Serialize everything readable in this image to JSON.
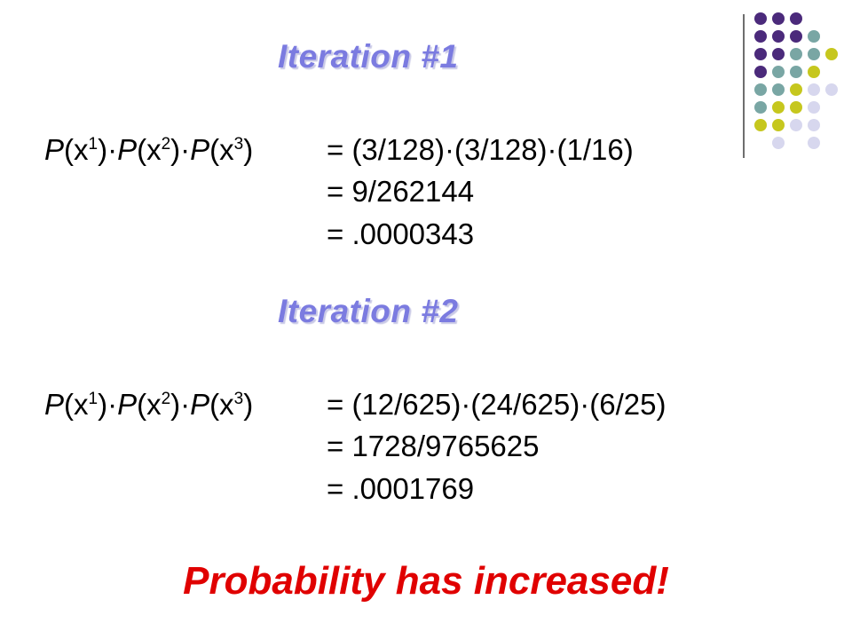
{
  "colors": {
    "title": "#7b7be0",
    "title_shadow": "#c9c9e6",
    "conclusion": "#e00000",
    "dot_purple": "#4b2a7b",
    "dot_teal": "#79a6a4",
    "dot_yellow": "#c6c71e",
    "dot_lavender": "#d7d7ee"
  },
  "decor": {
    "dots": [
      [
        "dot_purple",
        "dot_purple",
        "dot_purple",
        "",
        ""
      ],
      [
        "dot_purple",
        "dot_purple",
        "dot_purple",
        "dot_teal",
        ""
      ],
      [
        "dot_purple",
        "dot_purple",
        "dot_teal",
        "dot_teal",
        "dot_yellow"
      ],
      [
        "dot_purple",
        "dot_teal",
        "dot_teal",
        "dot_yellow",
        ""
      ],
      [
        "dot_teal",
        "dot_teal",
        "dot_yellow",
        "dot_lavender",
        "dot_lavender"
      ],
      [
        "dot_teal",
        "dot_yellow",
        "dot_yellow",
        "dot_lavender",
        ""
      ],
      [
        "dot_yellow",
        "dot_yellow",
        "dot_lavender",
        "dot_lavender",
        ""
      ],
      [
        "",
        "dot_lavender",
        "",
        "dot_lavender",
        ""
      ]
    ]
  },
  "iteration1": {
    "title": "Iteration #1",
    "lhs": {
      "p1": "P",
      "x1": "(x",
      "s1": "1",
      "p2": ")·P",
      "x2": "(x",
      "s2": "2",
      "p3": ")·P",
      "x3": "(x",
      "s3": "3",
      "end": ")"
    },
    "line1": "= (3/128)·(3/128)·(1/16)",
    "line2": "=  9/262144",
    "line3": "= .0000343"
  },
  "iteration2": {
    "title": "Iteration #2",
    "lhs": {
      "p1": "P",
      "x1": "(x",
      "s1": "1",
      "p2": ")·P",
      "x2": "(x",
      "s2": "2",
      "p3": ")·P",
      "x3": "(x",
      "s3": "3",
      "end": ")"
    },
    "line1": "= (12/625)·(24/625)·(6/25)",
    "line2": "=  1728/9765625",
    "line3": "= .0001769"
  },
  "conclusion": "Probability has increased!"
}
